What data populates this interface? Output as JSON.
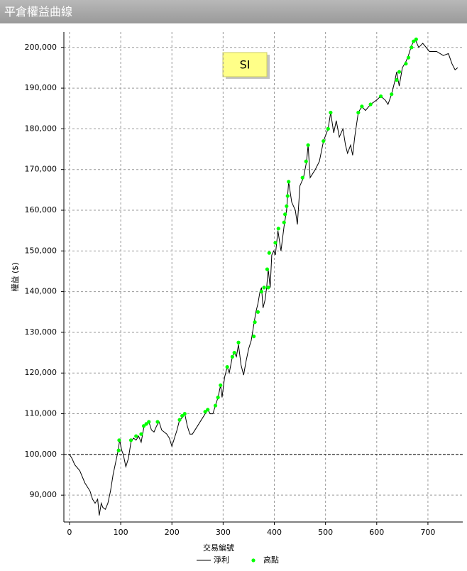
{
  "chart_data": {
    "type": "line",
    "title": "平倉權益曲線",
    "annotation": "SI",
    "xlabel": "交易編號",
    "ylabel": "權益 ($)",
    "xlim": [
      -11,
      768
    ],
    "ylim": [
      83400,
      203800
    ],
    "xticks": [
      0,
      100,
      200,
      300,
      400,
      500,
      600,
      700
    ],
    "yticks": [
      {
        "value": 90000,
        "label": "90,000"
      },
      {
        "value": 100000,
        "label": "100,000"
      },
      {
        "value": 110000,
        "label": "110,000"
      },
      {
        "value": 120000,
        "label": "120,000"
      },
      {
        "value": 130000,
        "label": "130,000"
      },
      {
        "value": 140000,
        "label": "140,000"
      },
      {
        "value": 150000,
        "label": "150,000"
      },
      {
        "value": 160000,
        "label": "160,000"
      },
      {
        "value": 170000,
        "label": "170,000"
      },
      {
        "value": 180000,
        "label": "180,000"
      },
      {
        "value": 190000,
        "label": "190,000"
      },
      {
        "value": 200000,
        "label": "200,000"
      }
    ],
    "grid": true,
    "hline": 100000,
    "series": [
      {
        "name": "淨利",
        "color": "#000000",
        "style": "line",
        "x": [
          0,
          5,
          10,
          20,
          30,
          40,
          45,
          50,
          55,
          58,
          62,
          65,
          70,
          75,
          80,
          85,
          90,
          95,
          98,
          102,
          105,
          110,
          115,
          120,
          125,
          130,
          135,
          140,
          145,
          150,
          155,
          160,
          165,
          170,
          175,
          180,
          190,
          195,
          200,
          205,
          210,
          215,
          220,
          225,
          230,
          235,
          240,
          250,
          260,
          265,
          270,
          275,
          280,
          285,
          290,
          295,
          298,
          303,
          308,
          312,
          318,
          322,
          326,
          330,
          335,
          340,
          345,
          350,
          355,
          360,
          364,
          368,
          372,
          375,
          378,
          382,
          385,
          388,
          392,
          395,
          399,
          402,
          407,
          413,
          419,
          424,
          428,
          434,
          441,
          445,
          450,
          457,
          463,
          466,
          470,
          480,
          488,
          496,
          505,
          510,
          516,
          521,
          527,
          534,
          539,
          543,
          549,
          553,
          557,
          564,
          571,
          578,
          588,
          599,
          608,
          617,
          622,
          629,
          635,
          639,
          644,
          650,
          657,
          662,
          668,
          675,
          682,
          690,
          703,
          717,
          730,
          740,
          747,
          753,
          758
        ],
        "values": [
          100000,
          99000,
          97500,
          96000,
          93000,
          91000,
          89000,
          88000,
          89000,
          85000,
          88000,
          87000,
          86500,
          88000,
          91000,
          95000,
          98000,
          101000,
          103500,
          101000,
          100000,
          97000,
          99000,
          103000,
          104000,
          103500,
          104500,
          103000,
          106500,
          107500,
          108000,
          106000,
          105500,
          107000,
          108000,
          106000,
          105000,
          104000,
          102000,
          104000,
          106000,
          108500,
          109000,
          110000,
          107000,
          105000,
          105000,
          107000,
          109000,
          110000,
          111000,
          110000,
          110000,
          112000,
          114000,
          117000,
          114000,
          119000,
          121500,
          120000,
          124000,
          125000,
          124000,
          127000,
          122000,
          119500,
          123000,
          126000,
          128000,
          132000,
          135000,
          137000,
          140000,
          141000,
          136000,
          138000,
          141000,
          145500,
          141000,
          149000,
          150000,
          149000,
          155000,
          150000,
          156000,
          160000,
          167000,
          162000,
          160000,
          156500,
          166000,
          168000,
          172000,
          176000,
          168000,
          170000,
          172000,
          177000,
          180000,
          184000,
          179000,
          182000,
          178000,
          180000,
          176000,
          174000,
          176000,
          173500,
          178000,
          184000,
          185500,
          184500,
          186000,
          187000,
          188000,
          187000,
          186000,
          188500,
          191500,
          194000,
          190500,
          195000,
          196500,
          198000,
          200500,
          202000,
          200000,
          201000,
          199000,
          199000,
          198000,
          198500,
          196000,
          194500,
          195000
        ]
      },
      {
        "name": "高點",
        "color": "#00ff00",
        "style": "marker",
        "x": [
          96,
          97,
          120,
          130,
          140,
          145,
          150,
          155,
          172,
          215,
          220,
          225,
          265,
          270,
          285,
          290,
          295,
          308,
          318,
          322,
          330,
          360,
          362,
          368,
          375,
          380,
          386,
          388,
          390,
          402,
          408,
          419,
          421,
          424,
          426,
          428,
          455,
          462,
          466,
          496,
          505,
          510,
          564,
          571,
          588,
          608,
          629,
          639,
          644,
          657,
          662,
          668,
          672,
          677
        ],
        "values": [
          101000,
          103500,
          103500,
          104500,
          105000,
          107000,
          107500,
          108000,
          108000,
          108500,
          109500,
          110000,
          110500,
          111000,
          112000,
          114000,
          117000,
          121500,
          124000,
          125000,
          127500,
          129000,
          132500,
          135000,
          140000,
          141000,
          145500,
          141000,
          149500,
          152000,
          155500,
          157000,
          159000,
          161000,
          163500,
          167000,
          168000,
          172000,
          176000,
          177000,
          180000,
          184000,
          184000,
          185500,
          186000,
          188000,
          188500,
          192000,
          194000,
          196000,
          197500,
          200000,
          201500,
          202000
        ]
      }
    ]
  }
}
